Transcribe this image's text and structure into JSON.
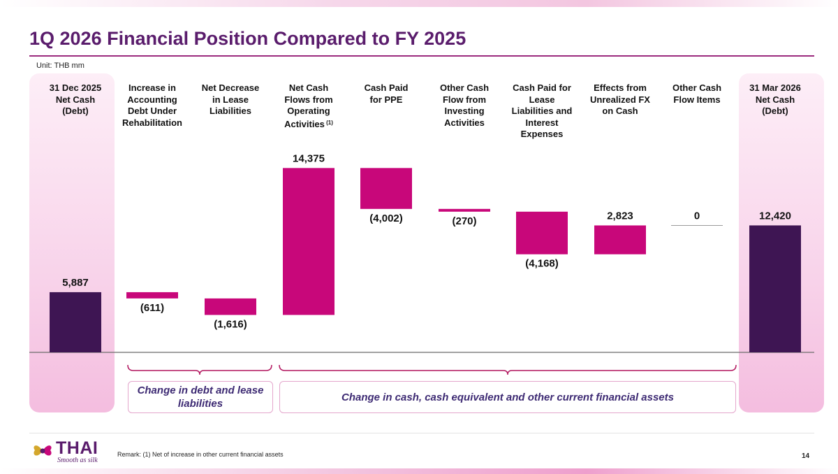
{
  "title": "1Q 2026 Financial Position Compared to FY 2025",
  "unit": "Unit: THB mm",
  "columns": [
    {
      "label": "31 Dec 2025\nNet Cash\n(Debt)",
      "note": ""
    },
    {
      "label": "Increase in\nAccounting\nDebt Under\nRehabilitation",
      "note": ""
    },
    {
      "label": "Net Decrease\nin Lease\nLiabilities",
      "note": ""
    },
    {
      "label": "Net Cash\nFlows from\nOperating\nActivities",
      "note": "(1)"
    },
    {
      "label": "Cash Paid\nfor PPE",
      "note": ""
    },
    {
      "label": "Other Cash\nFlow from\nInvesting\nActivities",
      "note": ""
    },
    {
      "label": "Cash Paid for\nLease\nLiabilities and\nInterest\nExpenses",
      "note": ""
    },
    {
      "label": "Effects from\nUnrealized FX\non Cash",
      "note": ""
    },
    {
      "label": "Other Cash\nFlow Items",
      "note": ""
    },
    {
      "label": "31 Mar 2026\nNet Cash\n(Debt)",
      "note": ""
    }
  ],
  "chart_data": {
    "type": "bar",
    "subtype": "waterfall",
    "categories": [
      "31 Dec 2025 Net Cash (Debt)",
      "Increase in Accounting Debt Under Rehabilitation",
      "Net Decrease in Lease Liabilities",
      "Net Cash Flows from Operating Activities (1)",
      "Cash Paid for PPE",
      "Other Cash Flow from Investing Activities",
      "Cash Paid for Lease Liabilities and Interest Expenses",
      "Effects from Unrealized FX on Cash",
      "Other Cash Flow Items",
      "31 Mar 2026 Net Cash (Debt)"
    ],
    "values": [
      5887,
      -611,
      -1616,
      14375,
      -4002,
      -270,
      -4168,
      2823,
      0,
      12420
    ],
    "labels": [
      "5,887",
      "(611)",
      "(1,616)",
      "14,375",
      "(4,002)",
      "(270)",
      "(4,168)",
      "2,823",
      "0",
      "12,420"
    ],
    "kinds": [
      "total",
      "delta",
      "delta",
      "delta",
      "delta",
      "delta",
      "delta",
      "delta",
      "delta",
      "total"
    ],
    "colors": {
      "total": "#3e1553",
      "delta": "#c8077a"
    }
  },
  "groups": {
    "debt": "Change in debt and lease liabilities",
    "cash": "Change in cash, cash equivalent and other current financial assets"
  },
  "logo": {
    "name": "THAI",
    "tagline": "Smooth as silk"
  },
  "remark": "Remark: (1) Net of increase in other current financial assets",
  "page_number": "14"
}
